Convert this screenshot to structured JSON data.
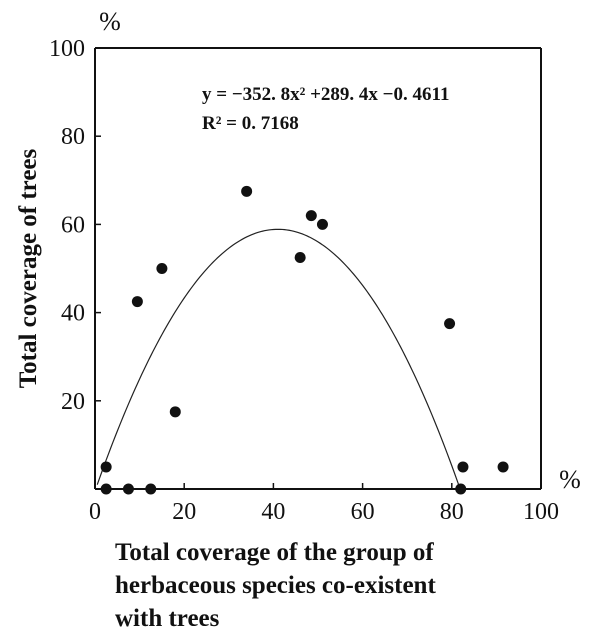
{
  "chart_data": {
    "type": "scatter",
    "title": "",
    "xlabel_lines": [
      "Total coverage of the group of",
      "herbaceous species co-existent",
      "with trees"
    ],
    "ylabel": "Total coverage of trees",
    "x_unit": "%",
    "y_unit": "%",
    "xlim": [
      0,
      100
    ],
    "ylim": [
      0,
      100
    ],
    "x_ticks": [
      0,
      20,
      40,
      60,
      80,
      100
    ],
    "y_ticks": [
      20,
      40,
      60,
      80,
      100
    ],
    "grid": false,
    "series": [
      {
        "points": [
          {
            "x": 2.5,
            "y": 5
          },
          {
            "x": 2.5,
            "y": 0
          },
          {
            "x": 7.5,
            "y": 0
          },
          {
            "x": 9.5,
            "y": 42.5
          },
          {
            "x": 12.5,
            "y": 0
          },
          {
            "x": 15,
            "y": 50
          },
          {
            "x": 18,
            "y": 17.5
          },
          {
            "x": 34,
            "y": 67.5
          },
          {
            "x": 46,
            "y": 52.5
          },
          {
            "x": 48.5,
            "y": 62
          },
          {
            "x": 51,
            "y": 60
          },
          {
            "x": 79.5,
            "y": 37.5
          },
          {
            "x": 82,
            "y": 0
          },
          {
            "x": 82.5,
            "y": 5
          },
          {
            "x": 91.5,
            "y": 5
          }
        ]
      }
    ],
    "trendline": {
      "equation": "y = −352. 8x² +289. 4x −0. 4611",
      "r_squared": "R² = 0. 7168",
      "coefficients": {
        "a": -352.8,
        "b": 289.4,
        "c": -0.4611
      },
      "x_scale": 0.01
    }
  }
}
